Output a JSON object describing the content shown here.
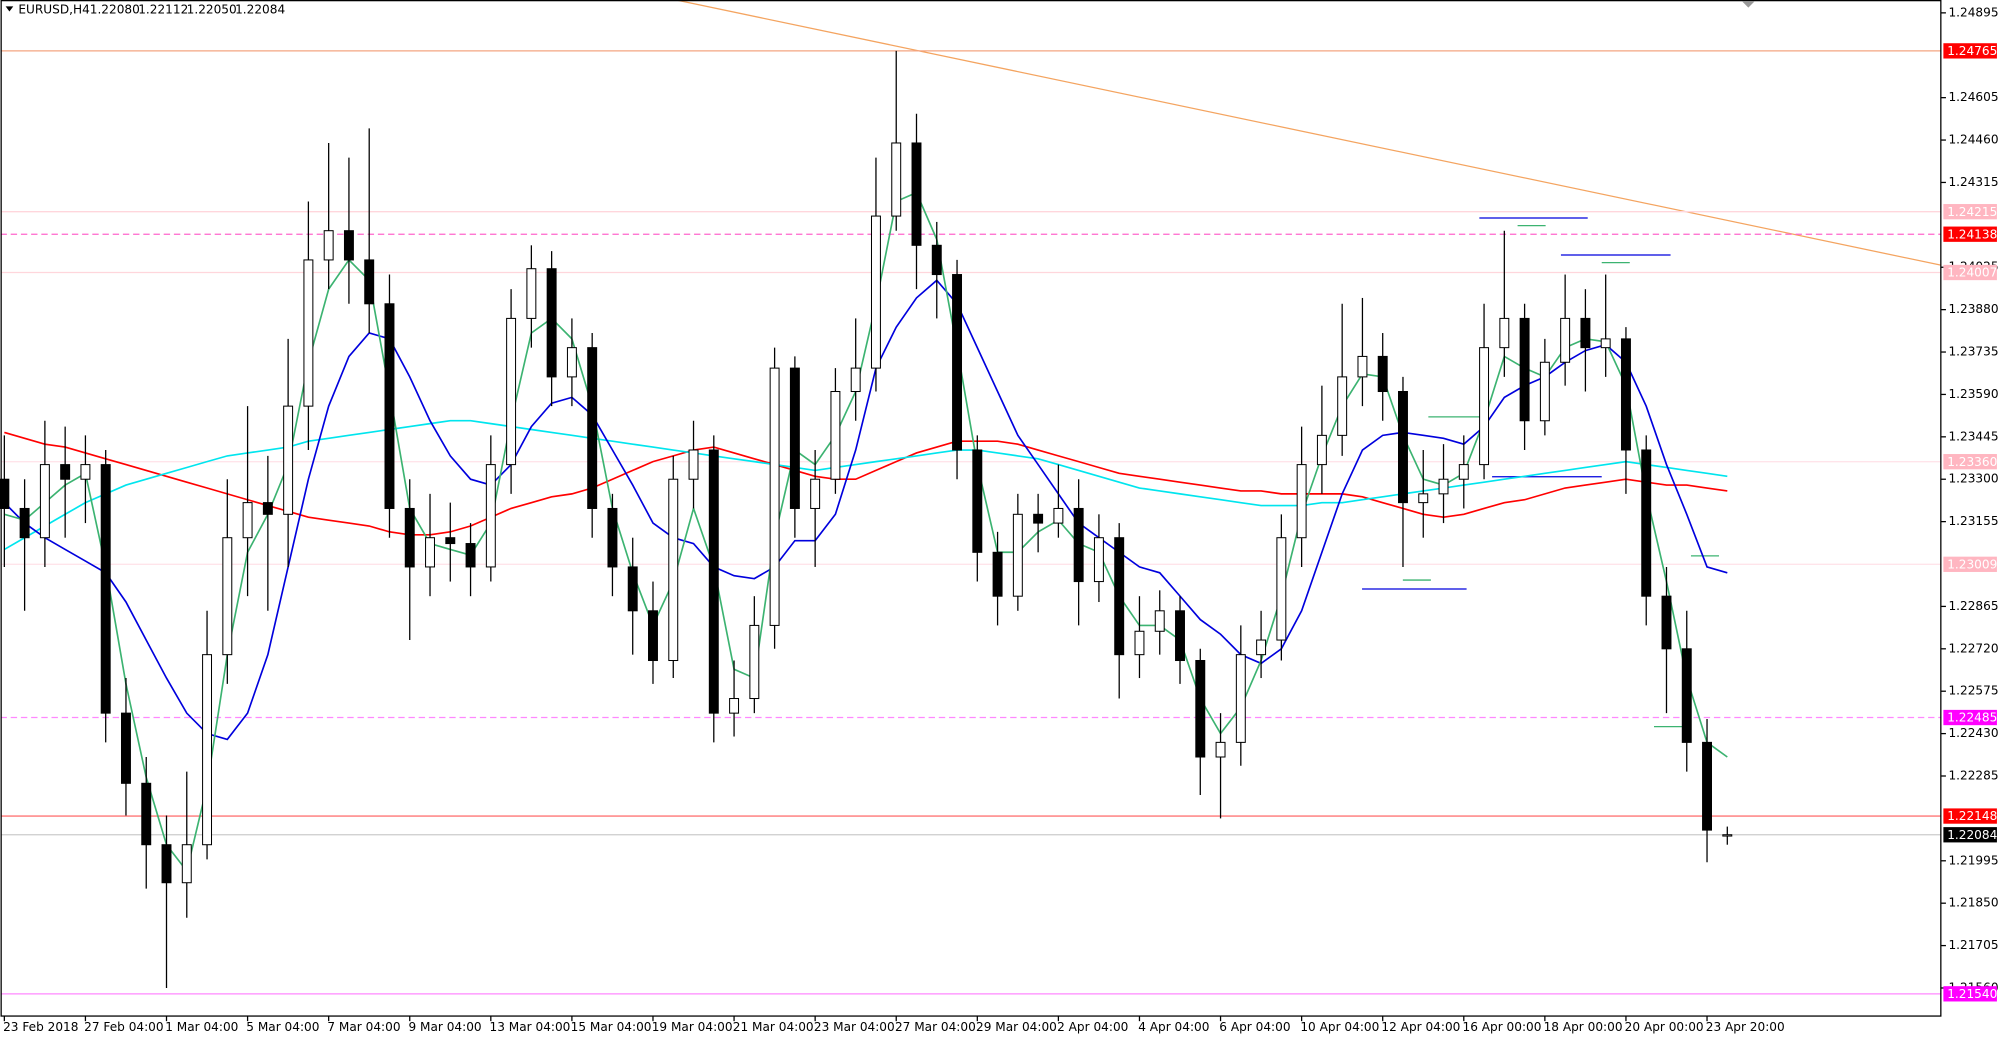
{
  "chart_data": {
    "type": "candlestick",
    "symbol": "EURUSD,H4",
    "ohlc_labels": [
      "1.22080",
      "1.22112",
      "1.22050",
      "1.22084"
    ],
    "up_color": "#ffffff",
    "down_color": "#000000",
    "ylim": [
      1.21464,
      1.24939
    ],
    "yticks": [
      {
        "value": 1.24895,
        "label": "1.24895"
      },
      {
        "value": 1.24605,
        "label": "1.24605"
      },
      {
        "value": 1.2446,
        "label": "1.24460"
      },
      {
        "value": 1.24315,
        "label": "1.24315"
      },
      {
        "value": 1.24025,
        "label": "1.24025"
      },
      {
        "value": 1.2388,
        "label": "1.23880"
      },
      {
        "value": 1.23735,
        "label": "1.23735"
      },
      {
        "value": 1.2359,
        "label": "1.23590"
      },
      {
        "value": 1.23445,
        "label": "1.23445"
      },
      {
        "value": 1.233,
        "label": "1.23300"
      },
      {
        "value": 1.23155,
        "label": "1.23155"
      },
      {
        "value": 1.22865,
        "label": "1.22865"
      },
      {
        "value": 1.2272,
        "label": "1.22720"
      },
      {
        "value": 1.22575,
        "label": "1.22575"
      },
      {
        "value": 1.2243,
        "label": "1.22430"
      },
      {
        "value": 1.22285,
        "label": "1.22285"
      },
      {
        "value": 1.21995,
        "label": "1.21995"
      },
      {
        "value": 1.2185,
        "label": "1.21850"
      },
      {
        "value": 1.21705,
        "label": "1.21705"
      },
      {
        "value": 1.2156,
        "label": "1.21560"
      }
    ],
    "levels": [
      {
        "value": 1.24765,
        "label": "1.24765",
        "color": "#ff0000",
        "line_color": "#f4a582",
        "dash": false
      },
      {
        "value": 1.24215,
        "label": "1.24215",
        "color": "#ffb6c1",
        "line_color": "#ffd6dc",
        "dash": false
      },
      {
        "value": 1.24138,
        "label": "1.24138",
        "color": "#ff0000",
        "line_color": "#ff66cc",
        "dash": true
      },
      {
        "value": 1.24007,
        "label": "1.24007",
        "color": "#ffb6c1",
        "line_color": "#ffd6dc",
        "dash": false
      },
      {
        "value": 1.2336,
        "label": "1.23360",
        "color": "#ffb6c1",
        "line_color": "#ffe4ea",
        "dash": false
      },
      {
        "value": 1.23009,
        "label": "1.23009",
        "color": "#ffb6c1",
        "line_color": "#ffe4ea",
        "dash": false
      },
      {
        "value": 1.22485,
        "label": "1.22485",
        "color": "#ff00ff",
        "line_color": "#ff88ff",
        "dash": true
      },
      {
        "value": 1.22148,
        "label": "1.22148",
        "color": "#ff0000",
        "line_color": "#ff7777",
        "dash": false
      },
      {
        "value": 1.22084,
        "label": "1.22084",
        "color": "#000000",
        "line_color": "#cccccc",
        "dash": false
      },
      {
        "value": 1.2154,
        "label": "1.21540",
        "color": "#ff00ff",
        "line_color": "#ff88ff",
        "dash": false
      }
    ],
    "categories": [
      "23 Feb 2018",
      null,
      null,
      null,
      "27 Feb 04:00",
      null,
      null,
      null,
      "1 Mar 04:00",
      null,
      null,
      null,
      "5 Mar 04:00",
      null,
      null,
      null,
      "7 Mar 04:00",
      null,
      null,
      null,
      "9 Mar 04:00",
      null,
      null,
      null,
      "13 Mar 04:00",
      null,
      null,
      null,
      "15 Mar 04:00",
      null,
      null,
      null,
      "19 Mar 04:00",
      null,
      null,
      null,
      "21 Mar 04:00",
      null,
      null,
      null,
      "23 Mar 04:00",
      null,
      null,
      null,
      "27 Mar 04:00",
      null,
      null,
      null,
      "29 Mar 04:00",
      null,
      null,
      null,
      "2 Apr 04:00",
      null,
      null,
      null,
      "4 Apr 04:00",
      null,
      null,
      null,
      "6 Apr 04:00",
      null,
      null,
      null,
      "10 Apr 04:00",
      null,
      null,
      null,
      "12 Apr 04:00",
      null,
      null,
      null,
      "16 Apr 00:00",
      null,
      null,
      null,
      "18 Apr 00:00",
      null,
      null,
      null,
      "20 Apr 00:00",
      null,
      null,
      null,
      "23 Apr 20:00",
      null
    ],
    "ohlc": [
      [
        1.233,
        1.2345,
        1.23,
        1.232
      ],
      [
        1.232,
        1.233,
        1.2285,
        1.231
      ],
      [
        1.231,
        1.235,
        1.23,
        1.2335
      ],
      [
        1.2335,
        1.2348,
        1.231,
        1.233
      ],
      [
        1.233,
        1.2345,
        1.2315,
        1.2335
      ],
      [
        1.2335,
        1.234,
        1.224,
        1.225
      ],
      [
        1.225,
        1.2262,
        1.2215,
        1.2226
      ],
      [
        1.2226,
        1.2235,
        1.219,
        1.2205
      ],
      [
        1.2205,
        1.2215,
        1.2156,
        1.2192
      ],
      [
        1.2192,
        1.223,
        1.218,
        1.2205
      ],
      [
        1.2205,
        1.2285,
        1.22,
        1.227
      ],
      [
        1.227,
        1.233,
        1.226,
        1.231
      ],
      [
        1.231,
        1.2355,
        1.229,
        1.2322
      ],
      [
        1.2322,
        1.2338,
        1.2285,
        1.2318
      ],
      [
        1.2318,
        1.2378,
        1.23,
        1.2355
      ],
      [
        1.2355,
        1.2425,
        1.234,
        1.2405
      ],
      [
        1.2405,
        1.2445,
        1.2395,
        1.2415
      ],
      [
        1.2415,
        1.244,
        1.239,
        1.2405
      ],
      [
        1.2405,
        1.245,
        1.238,
        1.239
      ],
      [
        1.239,
        1.24,
        1.231,
        1.232
      ],
      [
        1.232,
        1.233,
        1.2275,
        1.23
      ],
      [
        1.23,
        1.2325,
        1.229,
        1.231
      ],
      [
        1.231,
        1.2322,
        1.2295,
        1.2308
      ],
      [
        1.2308,
        1.2315,
        1.229,
        1.23
      ],
      [
        1.23,
        1.2345,
        1.2295,
        1.2335
      ],
      [
        1.2335,
        1.2395,
        1.2325,
        1.2385
      ],
      [
        1.2385,
        1.241,
        1.2375,
        1.2402
      ],
      [
        1.2402,
        1.2408,
        1.2355,
        1.2365
      ],
      [
        1.2365,
        1.2385,
        1.2355,
        1.2375
      ],
      [
        1.2375,
        1.238,
        1.231,
        1.232
      ],
      [
        1.232,
        1.2325,
        1.229,
        1.23
      ],
      [
        1.23,
        1.231,
        1.227,
        1.2285
      ],
      [
        1.2285,
        1.2295,
        1.226,
        1.2268
      ],
      [
        1.2268,
        1.2338,
        1.2262,
        1.233
      ],
      [
        1.233,
        1.235,
        1.232,
        1.234
      ],
      [
        1.234,
        1.2345,
        1.224,
        1.225
      ],
      [
        1.225,
        1.2268,
        1.2242,
        1.2255
      ],
      [
        1.2255,
        1.229,
        1.225,
        1.228
      ],
      [
        1.228,
        1.2375,
        1.2272,
        1.2368
      ],
      [
        1.2368,
        1.2372,
        1.231,
        1.232
      ],
      [
        1.232,
        1.234,
        1.23,
        1.233
      ],
      [
        1.233,
        1.2368,
        1.2325,
        1.236
      ],
      [
        1.236,
        1.2385,
        1.235,
        1.2368
      ],
      [
        1.2368,
        1.244,
        1.236,
        1.242
      ],
      [
        1.242,
        1.24765,
        1.2415,
        1.2445
      ],
      [
        1.2445,
        1.2455,
        1.2395,
        1.241
      ],
      [
        1.241,
        1.2418,
        1.2385,
        1.24
      ],
      [
        1.24,
        1.2405,
        1.233,
        1.234
      ],
      [
        1.234,
        1.2345,
        1.2295,
        1.2305
      ],
      [
        1.2305,
        1.2312,
        1.228,
        1.229
      ],
      [
        1.229,
        1.2325,
        1.2285,
        1.2318
      ],
      [
        1.2318,
        1.2325,
        1.2305,
        1.2315
      ],
      [
        1.2315,
        1.2335,
        1.231,
        1.232
      ],
      [
        1.232,
        1.233,
        1.228,
        1.2295
      ],
      [
        1.2295,
        1.2318,
        1.2288,
        1.231
      ],
      [
        1.231,
        1.2315,
        1.2255,
        1.227
      ],
      [
        1.227,
        1.229,
        1.2262,
        1.2278
      ],
      [
        1.2278,
        1.2292,
        1.227,
        1.2285
      ],
      [
        1.2285,
        1.229,
        1.226,
        1.2268
      ],
      [
        1.2268,
        1.2272,
        1.2222,
        1.2235
      ],
      [
        1.2235,
        1.225,
        1.2214,
        1.224
      ],
      [
        1.224,
        1.228,
        1.2232,
        1.227
      ],
      [
        1.227,
        1.2285,
        1.2262,
        1.2275
      ],
      [
        1.2275,
        1.2318,
        1.2268,
        1.231
      ],
      [
        1.231,
        1.2348,
        1.23,
        1.2335
      ],
      [
        1.2335,
        1.2362,
        1.2325,
        1.2345
      ],
      [
        1.2345,
        1.239,
        1.2338,
        1.2365
      ],
      [
        1.2365,
        1.2392,
        1.2355,
        1.2372
      ],
      [
        1.2372,
        1.238,
        1.235,
        1.236
      ],
      [
        1.236,
        1.2365,
        1.23,
        1.2322
      ],
      [
        1.2322,
        1.234,
        1.231,
        1.2325
      ],
      [
        1.2325,
        1.2342,
        1.2315,
        1.233
      ],
      [
        1.233,
        1.2345,
        1.232,
        1.2335
      ],
      [
        1.2335,
        1.239,
        1.233,
        1.2375
      ],
      [
        1.2375,
        1.2415,
        1.2365,
        1.2385
      ],
      [
        1.2385,
        1.239,
        1.234,
        1.235
      ],
      [
        1.235,
        1.2378,
        1.2345,
        1.237
      ],
      [
        1.237,
        1.24,
        1.2362,
        1.2385
      ],
      [
        1.2385,
        1.2395,
        1.236,
        1.2375
      ],
      [
        1.2375,
        1.24,
        1.2365,
        1.2378
      ],
      [
        1.2378,
        1.2382,
        1.2325,
        1.234
      ],
      [
        1.234,
        1.2345,
        1.228,
        1.229
      ],
      [
        1.229,
        1.23,
        1.225,
        1.2272
      ],
      [
        1.2272,
        1.2285,
        1.223,
        1.224
      ],
      [
        1.224,
        1.2248,
        1.2199,
        1.221
      ],
      [
        1.2208,
        1.22112,
        1.2205,
        1.22084
      ]
    ],
    "series": [
      {
        "color": "#ff0000",
        "values": [
          1.2346,
          1.2344,
          1.2342,
          1.2341,
          1.2339,
          1.2337,
          1.2335,
          1.2333,
          1.2331,
          1.2329,
          1.2327,
          1.2325,
          1.2323,
          1.2321,
          1.2319,
          1.2317,
          1.2316,
          1.2315,
          1.2314,
          1.2312,
          1.2311,
          1.2311,
          1.2312,
          1.2314,
          1.2317,
          1.232,
          1.2322,
          1.2324,
          1.2325,
          1.2327,
          1.233,
          1.2333,
          1.2336,
          1.2338,
          1.234,
          1.2341,
          1.2339,
          1.2337,
          1.2335,
          1.2333,
          1.2331,
          1.233,
          1.233,
          1.2333,
          1.2336,
          1.2339,
          1.2341,
          1.2343,
          1.2343,
          1.2343,
          1.2342,
          1.234,
          1.2338,
          1.2336,
          1.2334,
          1.2332,
          1.2331,
          1.233,
          1.2329,
          1.2328,
          1.2327,
          1.2326,
          1.2326,
          1.2325,
          1.2325,
          1.2325,
          1.2325,
          1.2324,
          1.2322,
          1.232,
          1.2318,
          1.2317,
          1.2318,
          1.232,
          1.2322,
          1.2323,
          1.2325,
          1.2327,
          1.2328,
          1.2329,
          1.233,
          1.2329,
          1.2328,
          1.2328,
          1.2327,
          1.2326
        ]
      },
      {
        "color": "#00e5ee",
        "values": [
          1.2306,
          1.231,
          1.2314,
          1.2318,
          1.2322,
          1.2325,
          1.2328,
          1.233,
          1.2332,
          1.2334,
          1.2336,
          1.2338,
          1.2339,
          1.234,
          1.2341,
          1.2343,
          1.2344,
          1.2345,
          1.2346,
          1.2347,
          1.2348,
          1.2349,
          1.235,
          1.235,
          1.2349,
          1.2348,
          1.2347,
          1.2346,
          1.2345,
          1.2344,
          1.2343,
          1.2342,
          1.2341,
          1.234,
          1.2339,
          1.2338,
          1.2337,
          1.2336,
          1.2335,
          1.2334,
          1.2333,
          1.2334,
          1.2335,
          1.2336,
          1.2337,
          1.2338,
          1.2339,
          1.234,
          1.234,
          1.2339,
          1.2338,
          1.2337,
          1.2335,
          1.2333,
          1.2331,
          1.2329,
          1.2327,
          1.2326,
          1.2325,
          1.2324,
          1.2323,
          1.2322,
          1.2321,
          1.2321,
          1.2321,
          1.2322,
          1.2322,
          1.2323,
          1.2324,
          1.2325,
          1.2326,
          1.2327,
          1.2328,
          1.2329,
          1.233,
          1.2331,
          1.2332,
          1.2333,
          1.2334,
          1.2335,
          1.2336,
          1.2335,
          1.2334,
          1.2333,
          1.2332,
          1.2331
        ]
      },
      {
        "color": "#0000dd",
        "values": [
          1.2322,
          1.2315,
          1.231,
          1.2306,
          1.2302,
          1.2298,
          1.2288,
          1.2275,
          1.2262,
          1.225,
          1.2243,
          1.2241,
          1.225,
          1.227,
          1.23,
          1.233,
          1.2355,
          1.2372,
          1.238,
          1.2378,
          1.2365,
          1.235,
          1.2338,
          1.233,
          1.2328,
          1.2335,
          1.2348,
          1.2356,
          1.2358,
          1.2352,
          1.234,
          1.2328,
          1.2315,
          1.231,
          1.2308,
          1.23,
          1.2297,
          1.2296,
          1.23,
          1.2309,
          1.2309,
          1.2318,
          1.234,
          1.2368,
          1.2382,
          1.2392,
          1.2398,
          1.239,
          1.2375,
          1.236,
          1.2345,
          1.2335,
          1.2325,
          1.2315,
          1.231,
          1.2305,
          1.23,
          1.2298,
          1.229,
          1.2282,
          1.2277,
          1.227,
          1.2267,
          1.2272,
          1.2285,
          1.2305,
          1.2325,
          1.234,
          1.2345,
          1.2346,
          1.2345,
          1.2344,
          1.2342,
          1.2348,
          1.2358,
          1.2362,
          1.2365,
          1.237,
          1.2374,
          1.2376,
          1.237,
          1.2355,
          1.2335,
          1.2318,
          1.23,
          1.2298
        ]
      },
      {
        "color": "#3cb371",
        "values": [
          1.2318,
          1.2316,
          1.2322,
          1.2328,
          1.2332,
          1.23,
          1.226,
          1.2228,
          1.2205,
          1.2196,
          1.2225,
          1.227,
          1.2305,
          1.2318,
          1.2335,
          1.237,
          1.2395,
          1.2405,
          1.2398,
          1.236,
          1.232,
          1.2308,
          1.2306,
          1.2304,
          1.2315,
          1.235,
          1.238,
          1.2385,
          1.2378,
          1.2355,
          1.232,
          1.2298,
          1.228,
          1.2295,
          1.232,
          1.23,
          1.2265,
          1.2262,
          1.231,
          1.234,
          1.2335,
          1.2345,
          1.236,
          1.239,
          1.2425,
          1.2428,
          1.2412,
          1.2375,
          1.2335,
          1.2305,
          1.2305,
          1.2312,
          1.2316,
          1.2308,
          1.2305,
          1.229,
          1.228,
          1.228,
          1.2275,
          1.2255,
          1.2243,
          1.2252,
          1.2268,
          1.229,
          1.2318,
          1.2338,
          1.2355,
          1.2366,
          1.2365,
          1.2345,
          1.233,
          1.2328,
          1.2332,
          1.235,
          1.2372,
          1.2368,
          1.2365,
          1.2375,
          1.2378,
          1.2377,
          1.2362,
          1.2325,
          1.2295,
          1.2262,
          1.224,
          1.2235
        ]
      }
    ]
  }
}
